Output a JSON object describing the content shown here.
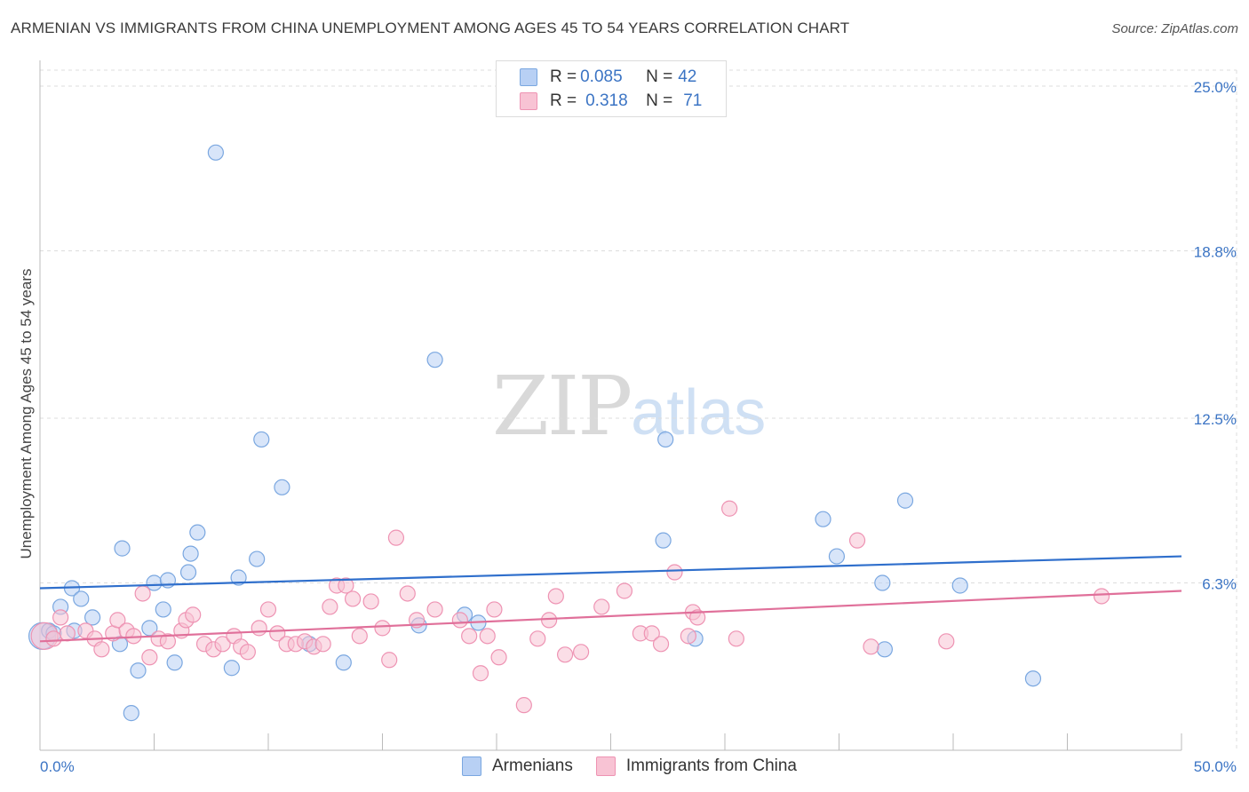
{
  "header": {
    "title": "ARMENIAN VS IMMIGRANTS FROM CHINA UNEMPLOYMENT AMONG AGES 45 TO 54 YEARS CORRELATION CHART",
    "source": "Source: ZipAtlas.com"
  },
  "watermark": {
    "zip": "ZIP",
    "atlas": "atlas"
  },
  "legend": {
    "armenians": {
      "r_label": "R = ",
      "r_value": "0.085",
      "n_label": "N = ",
      "n_value": "42"
    },
    "china": {
      "r_label": "R = ",
      "r_value": "0.318",
      "n_label": "N = ",
      "n_value": "71"
    }
  },
  "bottom_legend": {
    "armenians": "Armenians",
    "china": "Immigrants from China"
  },
  "colors": {
    "blue_fill": "#b8d0f4",
    "blue_stroke": "#7aa7e0",
    "blue_line": "#2f6fcc",
    "pink_fill": "#f8c3d4",
    "pink_stroke": "#ee93b3",
    "pink_line": "#e0709a",
    "grid": "#dddddd",
    "tick_label": "#3b74c4"
  },
  "chart_data": {
    "type": "scatter",
    "title": "ARMENIAN VS IMMIGRANTS FROM CHINA UNEMPLOYMENT AMONG AGES 45 TO 54 YEARS CORRELATION CHART",
    "xlabel": "",
    "ylabel": "Unemployment Among Ages 45 to 54 years",
    "xlim": [
      0,
      50
    ],
    "ylim": [
      0,
      25
    ],
    "x_tick_labels": [
      "0.0%",
      "50.0%"
    ],
    "y_ticks": [
      6.3,
      12.5,
      18.8,
      25.0
    ],
    "y_tick_labels": [
      "6.3%",
      "12.5%",
      "18.8%",
      "25.0%"
    ],
    "grid": true,
    "series": [
      {
        "name": "Armenians",
        "r": 0.085,
        "n": 42,
        "trend": {
          "x": [
            0,
            50
          ],
          "y": [
            6.1,
            7.3
          ]
        },
        "points": [
          [
            0.1,
            4.3,
            2
          ],
          [
            0.4,
            4.5,
            1
          ],
          [
            0.6,
            4.4,
            1
          ],
          [
            0.9,
            5.4,
            1
          ],
          [
            1.5,
            4.5,
            1
          ],
          [
            1.4,
            6.1,
            1
          ],
          [
            1.8,
            5.7,
            1
          ],
          [
            2.3,
            5.0,
            1
          ],
          [
            3.5,
            4.0,
            1
          ],
          [
            3.6,
            7.6,
            1
          ],
          [
            4.3,
            3.0,
            1
          ],
          [
            4.8,
            4.6,
            1
          ],
          [
            5.0,
            6.3,
            1
          ],
          [
            5.4,
            5.3,
            1
          ],
          [
            5.6,
            6.4,
            1
          ],
          [
            5.9,
            3.3,
            1
          ],
          [
            6.5,
            6.7,
            1
          ],
          [
            6.6,
            7.4,
            1
          ],
          [
            6.9,
            8.2,
            1
          ],
          [
            8.4,
            3.1,
            1
          ],
          [
            8.7,
            6.5,
            1
          ],
          [
            9.5,
            7.2,
            1
          ],
          [
            9.7,
            11.7,
            1
          ],
          [
            10.6,
            9.9,
            1
          ],
          [
            4.0,
            1.4,
            1
          ],
          [
            7.7,
            22.5,
            1
          ],
          [
            17.3,
            14.7,
            1
          ],
          [
            11.8,
            4.0,
            1
          ],
          [
            13.3,
            3.3,
            1
          ],
          [
            16.6,
            4.7,
            1
          ],
          [
            18.6,
            5.1,
            1
          ],
          [
            19.2,
            4.8,
            1
          ],
          [
            27.3,
            7.9,
            1
          ],
          [
            27.4,
            11.7,
            1
          ],
          [
            28.7,
            4.2,
            1
          ],
          [
            34.3,
            8.7,
            1
          ],
          [
            34.9,
            7.3,
            1
          ],
          [
            36.9,
            6.3,
            1
          ],
          [
            37.0,
            3.8,
            1
          ],
          [
            37.9,
            9.4,
            1
          ],
          [
            40.3,
            6.2,
            1
          ],
          [
            43.5,
            2.7,
            1
          ]
        ]
      },
      {
        "name": "Immigrants from China",
        "r": 0.318,
        "n": 71,
        "trend": {
          "x": [
            0,
            50
          ],
          "y": [
            4.1,
            6.0
          ]
        },
        "points": [
          [
            0.2,
            4.3,
            2
          ],
          [
            0.6,
            4.2,
            1
          ],
          [
            0.9,
            5.0,
            1
          ],
          [
            1.2,
            4.4,
            1
          ],
          [
            2.0,
            4.5,
            1
          ],
          [
            2.4,
            4.2,
            1
          ],
          [
            2.7,
            3.8,
            1
          ],
          [
            3.2,
            4.4,
            1
          ],
          [
            3.4,
            4.9,
            1
          ],
          [
            3.8,
            4.5,
            1
          ],
          [
            4.1,
            4.3,
            1
          ],
          [
            4.5,
            5.9,
            1
          ],
          [
            4.8,
            3.5,
            1
          ],
          [
            5.2,
            4.2,
            1
          ],
          [
            5.6,
            4.1,
            1
          ],
          [
            6.2,
            4.5,
            1
          ],
          [
            6.4,
            4.9,
            1
          ],
          [
            6.7,
            5.1,
            1
          ],
          [
            7.2,
            4.0,
            1
          ],
          [
            7.6,
            3.8,
            1
          ],
          [
            8.0,
            4.0,
            1
          ],
          [
            8.5,
            4.3,
            1
          ],
          [
            8.8,
            3.9,
            1
          ],
          [
            9.1,
            3.7,
            1
          ],
          [
            9.6,
            4.6,
            1
          ],
          [
            10.0,
            5.3,
            1
          ],
          [
            10.4,
            4.4,
            1
          ],
          [
            10.8,
            4.0,
            1
          ],
          [
            11.2,
            4.0,
            1
          ],
          [
            11.6,
            4.1,
            1
          ],
          [
            12.0,
            3.9,
            1
          ],
          [
            12.4,
            4.0,
            1
          ],
          [
            12.7,
            5.4,
            1
          ],
          [
            13.0,
            6.2,
            1
          ],
          [
            13.4,
            6.2,
            1
          ],
          [
            13.7,
            5.7,
            1
          ],
          [
            14.0,
            4.3,
            1
          ],
          [
            14.5,
            5.6,
            1
          ],
          [
            15.0,
            4.6,
            1
          ],
          [
            15.3,
            3.4,
            1
          ],
          [
            15.6,
            8.0,
            1
          ],
          [
            16.1,
            5.9,
            1
          ],
          [
            16.5,
            4.9,
            1
          ],
          [
            17.3,
            5.3,
            1
          ],
          [
            18.4,
            4.9,
            1
          ],
          [
            18.8,
            4.3,
            1
          ],
          [
            19.3,
            2.9,
            1
          ],
          [
            19.6,
            4.3,
            1
          ],
          [
            19.9,
            5.3,
            1
          ],
          [
            20.1,
            3.5,
            1
          ],
          [
            21.2,
            1.7,
            1
          ],
          [
            21.8,
            4.2,
            1
          ],
          [
            22.3,
            4.9,
            1
          ],
          [
            22.6,
            5.8,
            1
          ],
          [
            23.0,
            3.6,
            1
          ],
          [
            23.7,
            3.7,
            1
          ],
          [
            24.6,
            5.4,
            1
          ],
          [
            25.6,
            6.0,
            1
          ],
          [
            26.3,
            4.4,
            1
          ],
          [
            26.8,
            4.4,
            1
          ],
          [
            27.2,
            4.0,
            1
          ],
          [
            27.8,
            6.7,
            1
          ],
          [
            28.4,
            4.3,
            1
          ],
          [
            28.6,
            5.2,
            1
          ],
          [
            28.8,
            5.0,
            1
          ],
          [
            30.2,
            9.1,
            1
          ],
          [
            30.5,
            4.2,
            1
          ],
          [
            35.8,
            7.9,
            1
          ],
          [
            36.4,
            3.9,
            1
          ],
          [
            39.7,
            4.1,
            1
          ],
          [
            46.5,
            5.8,
            1
          ]
        ]
      }
    ]
  }
}
